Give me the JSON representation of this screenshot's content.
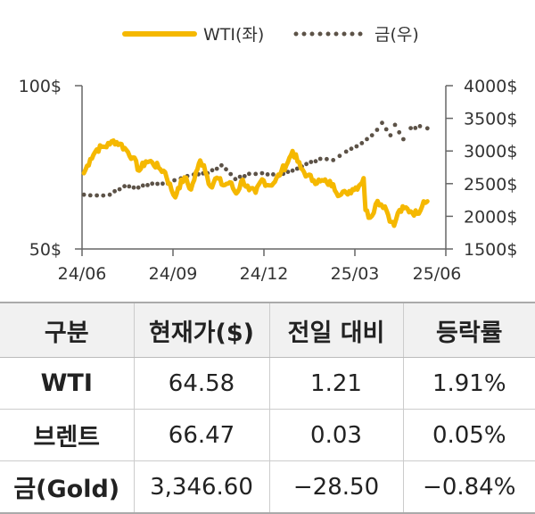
{
  "chart_data": {
    "type": "line",
    "legend": [
      "WTI(좌)",
      "금(우)"
    ],
    "legend_placement": "top-center",
    "x_tick_labels": [
      "24/06",
      "24/09",
      "24/12",
      "25/03",
      "25/06"
    ],
    "left_axis": {
      "ticks": [
        "100$",
        "50$"
      ],
      "ylim": [
        50,
        100
      ]
    },
    "right_axis": {
      "ticks": [
        "4000$",
        "3500$",
        "3000$",
        "2500$",
        "2000$",
        "1500$"
      ],
      "ylim": [
        1500,
        4000
      ]
    },
    "grid": false,
    "x_range": [
      "2024-06-01",
      "2025-06-30"
    ],
    "series": [
      {
        "name": "WTI(좌)",
        "axis": "left",
        "style": "solid",
        "color": "#F5B800",
        "points": [
          [
            "2024-06-03",
            73.2
          ],
          [
            "2024-06-10",
            77.5
          ],
          [
            "2024-06-17",
            80.5
          ],
          [
            "2024-06-24",
            81.3
          ],
          [
            "2024-07-01",
            82.0
          ],
          [
            "2024-07-05",
            83.2
          ],
          [
            "2024-07-12",
            82.2
          ],
          [
            "2024-07-19",
            80.3
          ],
          [
            "2024-07-26",
            78.0
          ],
          [
            "2024-08-02",
            74.0
          ],
          [
            "2024-08-09",
            76.8
          ],
          [
            "2024-08-16",
            76.5
          ],
          [
            "2024-08-23",
            74.9
          ],
          [
            "2024-08-30",
            73.5
          ],
          [
            "2024-09-06",
            68.0
          ],
          [
            "2024-09-10",
            65.8
          ],
          [
            "2024-09-13",
            68.7
          ],
          [
            "2024-09-20",
            71.9
          ],
          [
            "2024-09-27",
            68.2
          ],
          [
            "2024-10-04",
            74.4
          ],
          [
            "2024-10-07",
            77.1
          ],
          [
            "2024-10-11",
            75.6
          ],
          [
            "2024-10-18",
            69.2
          ],
          [
            "2024-10-25",
            71.8
          ],
          [
            "2024-11-01",
            69.5
          ],
          [
            "2024-11-08",
            70.4
          ],
          [
            "2024-11-15",
            67.0
          ],
          [
            "2024-11-22",
            71.2
          ],
          [
            "2024-11-29",
            68.0
          ],
          [
            "2024-12-06",
            67.2
          ],
          [
            "2024-12-13",
            71.3
          ],
          [
            "2024-12-20",
            69.5
          ],
          [
            "2024-12-27",
            70.6
          ],
          [
            "2025-01-03",
            73.9
          ],
          [
            "2025-01-10",
            76.6
          ],
          [
            "2025-01-15",
            80.0
          ],
          [
            "2025-01-24",
            74.7
          ],
          [
            "2025-01-31",
            72.5
          ],
          [
            "2025-02-07",
            71.0
          ],
          [
            "2025-02-14",
            70.7
          ],
          [
            "2025-02-21",
            70.4
          ],
          [
            "2025-02-28",
            69.8
          ],
          [
            "2025-03-07",
            66.4
          ],
          [
            "2025-03-14",
            67.2
          ],
          [
            "2025-03-21",
            68.3
          ],
          [
            "2025-03-28",
            69.4
          ],
          [
            "2025-04-02",
            71.7
          ],
          [
            "2025-04-04",
            61.9
          ],
          [
            "2025-04-09",
            59.6
          ],
          [
            "2025-04-17",
            64.7
          ],
          [
            "2025-04-25",
            63.0
          ],
          [
            "2025-05-02",
            58.3
          ],
          [
            "2025-05-05",
            57.1
          ],
          [
            "2025-05-09",
            61.0
          ],
          [
            "2025-05-16",
            62.5
          ],
          [
            "2025-05-23",
            61.5
          ],
          [
            "2025-05-30",
            60.8
          ],
          [
            "2025-06-06",
            64.6
          ],
          [
            "2025-06-10",
            64.58
          ]
        ]
      },
      {
        "name": "금(우)",
        "axis": "right",
        "style": "dotted",
        "color": "#5C5247",
        "points": [
          [
            "2024-06-03",
            2330
          ],
          [
            "2024-06-17",
            2320
          ],
          [
            "2024-07-01",
            2330
          ],
          [
            "2024-07-17",
            2460
          ],
          [
            "2024-08-01",
            2440
          ],
          [
            "2024-08-16",
            2500
          ],
          [
            "2024-09-02",
            2500
          ],
          [
            "2024-09-16",
            2580
          ],
          [
            "2024-09-30",
            2640
          ],
          [
            "2024-10-15",
            2660
          ],
          [
            "2024-10-30",
            2780
          ],
          [
            "2024-11-14",
            2570
          ],
          [
            "2024-11-29",
            2650
          ],
          [
            "2024-12-13",
            2660
          ],
          [
            "2024-12-31",
            2620
          ],
          [
            "2025-01-15",
            2700
          ],
          [
            "2025-01-30",
            2800
          ],
          [
            "2025-02-14",
            2880
          ],
          [
            "2025-02-28",
            2860
          ],
          [
            "2025-03-14",
            2990
          ],
          [
            "2025-03-31",
            3120
          ],
          [
            "2025-04-11",
            3240
          ],
          [
            "2025-04-22",
            3430
          ],
          [
            "2025-05-01",
            3240
          ],
          [
            "2025-05-06",
            3400
          ],
          [
            "2025-05-15",
            3180
          ],
          [
            "2025-05-23",
            3350
          ],
          [
            "2025-06-02",
            3380
          ],
          [
            "2025-06-10",
            3346.6
          ]
        ]
      }
    ]
  },
  "table": {
    "headers": [
      "구분",
      "현재가($)",
      "전일 대비",
      "등락률"
    ],
    "rows": [
      [
        "WTI",
        "64.58",
        "1.21",
        "1.91%"
      ],
      [
        "브렌트",
        "66.47",
        "0.03",
        "0.05%"
      ],
      [
        "금(Gold)",
        "3,346.60",
        "−28.50",
        "−0.84%"
      ]
    ]
  }
}
